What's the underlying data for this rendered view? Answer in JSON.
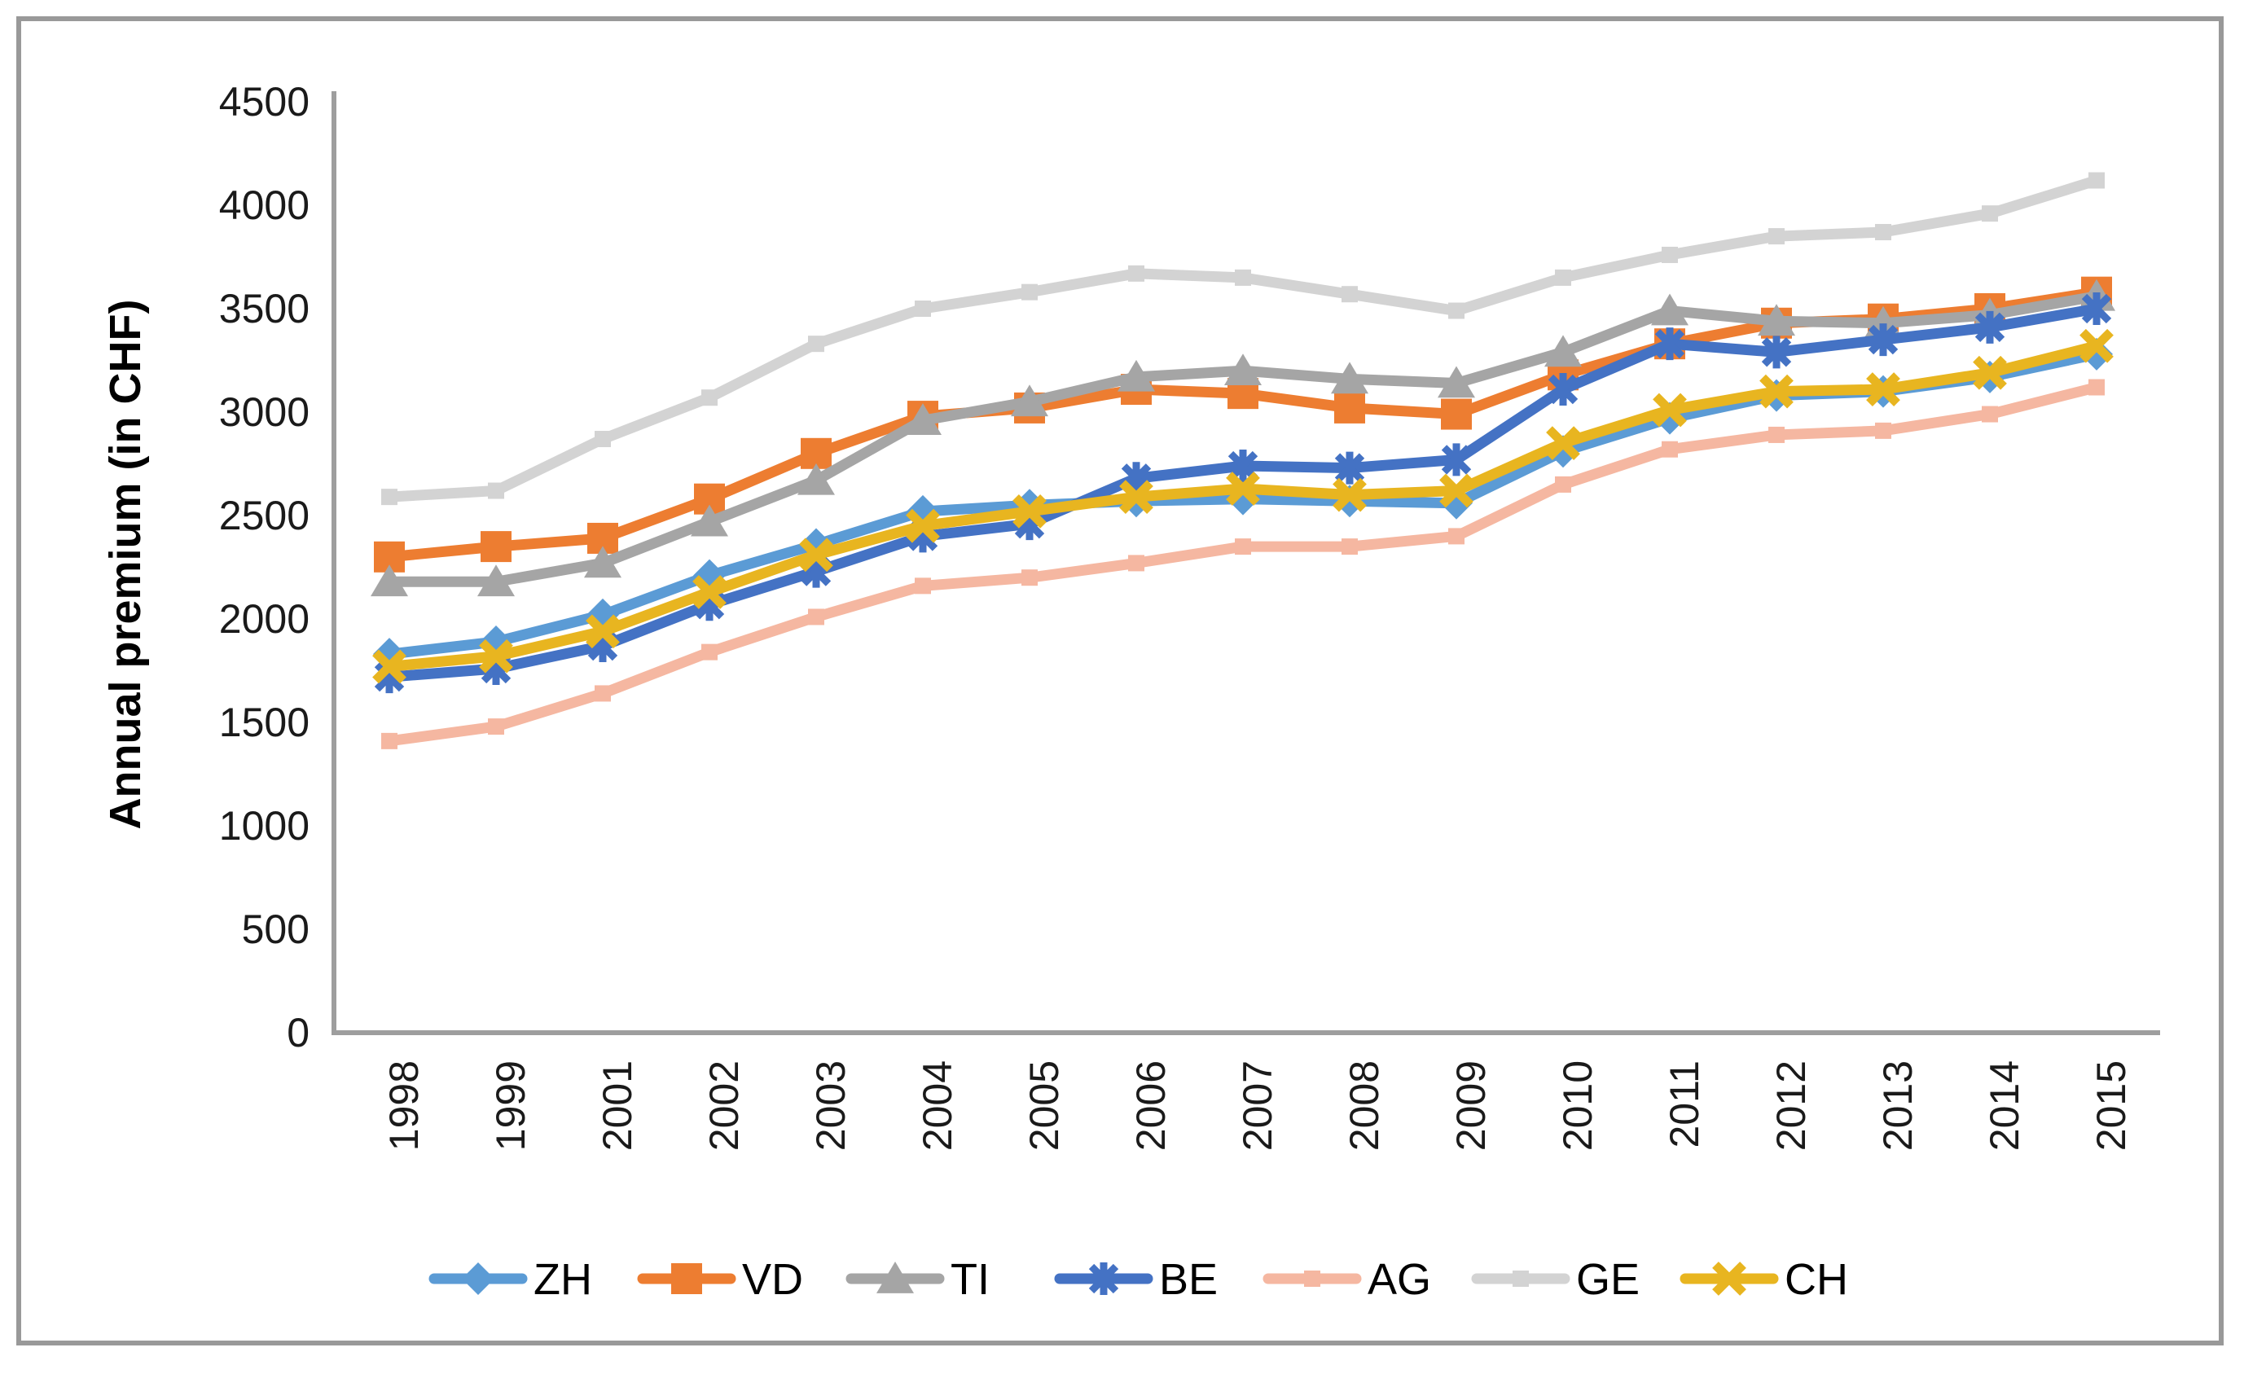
{
  "chart_data": {
    "type": "line",
    "title": "",
    "xlabel": "",
    "ylabel": "Annual premium (in CHF)",
    "ylim": [
      0,
      4500
    ],
    "ytick_step": 500,
    "grid": false,
    "legend_position": "bottom",
    "categories": [
      "1998",
      "1999",
      "2001",
      "2002",
      "2003",
      "2004",
      "2005",
      "2006",
      "2007",
      "2008",
      "2009",
      "2010",
      "2011",
      "2012",
      "2013",
      "2014",
      "2015"
    ],
    "series": [
      {
        "name": "ZH",
        "color": "#5B9BD5",
        "marker": "diamond",
        "values": [
          1830,
          1890,
          2020,
          2210,
          2360,
          2520,
          2550,
          2570,
          2580,
          2570,
          2560,
          2810,
          2970,
          3080,
          3100,
          3170,
          3280
        ]
      },
      {
        "name": "VD",
        "color": "#ED7D31",
        "marker": "square",
        "values": [
          2300,
          2350,
          2390,
          2580,
          2800,
          2980,
          3020,
          3110,
          3090,
          3020,
          2990,
          3180,
          3330,
          3430,
          3450,
          3500,
          3580
        ]
      },
      {
        "name": "TI",
        "color": "#A5A5A5",
        "marker": "triangle",
        "values": [
          2180,
          2180,
          2270,
          2470,
          2670,
          2960,
          3050,
          3170,
          3200,
          3160,
          3140,
          3290,
          3490,
          3440,
          3430,
          3470,
          3560
        ]
      },
      {
        "name": "BE",
        "color": "#4472C4",
        "marker": "star",
        "values": [
          1720,
          1760,
          1870,
          2070,
          2230,
          2400,
          2460,
          2680,
          2740,
          2730,
          2770,
          3110,
          3330,
          3290,
          3350,
          3410,
          3500
        ]
      },
      {
        "name": "AG",
        "color": "#F5B7A1",
        "marker": "dash",
        "values": [
          1410,
          1480,
          1640,
          1840,
          2010,
          2160,
          2200,
          2270,
          2350,
          2350,
          2400,
          2650,
          2820,
          2890,
          2910,
          2990,
          3120
        ]
      },
      {
        "name": "GE",
        "color": "#D3D3D3",
        "marker": "dash",
        "values": [
          2590,
          2620,
          2870,
          3070,
          3330,
          3500,
          3580,
          3670,
          3650,
          3570,
          3490,
          3650,
          3760,
          3850,
          3870,
          3960,
          4120
        ]
      },
      {
        "name": "CH",
        "color": "#E8B520",
        "marker": "x",
        "values": [
          1770,
          1820,
          1940,
          2130,
          2310,
          2450,
          2520,
          2590,
          2630,
          2600,
          2620,
          2850,
          3010,
          3100,
          3110,
          3190,
          3320
        ]
      }
    ]
  },
  "frame": {
    "border_color": "#999999",
    "background": "#FFFFFF"
  },
  "axis": {
    "line_color": "#9E9E9E",
    "tick_label_color": "#1A1A1A"
  }
}
